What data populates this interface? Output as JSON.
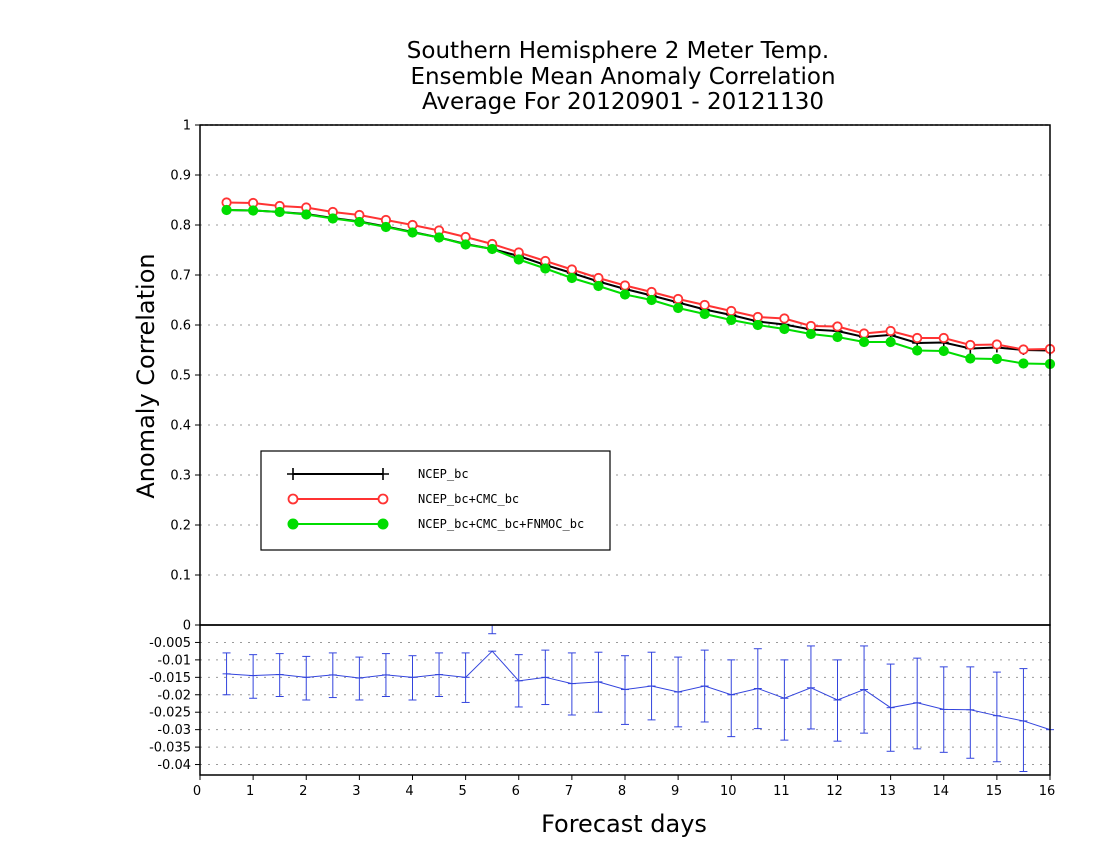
{
  "chart_data": {
    "type": "line",
    "title_lines": [
      "Southern Hemisphere 2 Meter Temp.",
      "Ensemble Mean Anomaly Correlation",
      "Average For 20120901 - 20121130"
    ],
    "xlabel": "Forecast days",
    "ylabel": "Anomaly Correlation",
    "xlim": [
      0,
      16
    ],
    "x_ticks": [
      "0",
      "1",
      "2",
      "3",
      "4",
      "5",
      "6",
      "7",
      "8",
      "9",
      "10",
      "11",
      "12",
      "13",
      "14",
      "15",
      "16"
    ],
    "top_panel": {
      "ylim": [
        0,
        1
      ],
      "y_ticks": [
        "0",
        "0.1",
        "0.2",
        "0.3",
        "0.4",
        "0.5",
        "0.6",
        "0.7",
        "0.8",
        "0.9",
        "1"
      ],
      "x": [
        0.5,
        1,
        1.5,
        2,
        2.5,
        3,
        3.5,
        4,
        4.5,
        5,
        5.5,
        6,
        6.5,
        7,
        7.5,
        8,
        8.5,
        9,
        9.5,
        10,
        10.5,
        11,
        11.5,
        12,
        12.5,
        13,
        13.5,
        14,
        14.5,
        15,
        15.5,
        16
      ],
      "series": [
        {
          "name": "NCEP_bc",
          "color": "#000000",
          "marker": "plus",
          "values": [
            0.83,
            0.829,
            0.826,
            0.822,
            0.814,
            0.807,
            0.797,
            0.786,
            0.775,
            0.762,
            0.752,
            0.738,
            0.72,
            0.704,
            0.687,
            0.672,
            0.659,
            0.645,
            0.631,
            0.62,
            0.607,
            0.601,
            0.591,
            0.588,
            0.576,
            0.58,
            0.564,
            0.565,
            0.553,
            0.555,
            0.55,
            0.549
          ]
        },
        {
          "name": "NCEP_bc+CMC_bc",
          "color": "#ff3333",
          "marker": "open-circle",
          "values": [
            0.845,
            0.844,
            0.838,
            0.835,
            0.826,
            0.82,
            0.81,
            0.8,
            0.789,
            0.776,
            0.762,
            0.745,
            0.728,
            0.711,
            0.694,
            0.679,
            0.666,
            0.652,
            0.64,
            0.628,
            0.616,
            0.613,
            0.598,
            0.597,
            0.583,
            0.588,
            0.574,
            0.574,
            0.56,
            0.561,
            0.551,
            0.552
          ]
        },
        {
          "name": "NCEP_bc+CMC_bc+FNMOC_bc",
          "color": "#00dd00",
          "marker": "filled-circle",
          "values": [
            0.83,
            0.829,
            0.826,
            0.821,
            0.813,
            0.806,
            0.796,
            0.785,
            0.775,
            0.761,
            0.752,
            0.731,
            0.713,
            0.694,
            0.678,
            0.661,
            0.65,
            0.634,
            0.622,
            0.61,
            0.6,
            0.592,
            0.582,
            0.576,
            0.566,
            0.566,
            0.549,
            0.548,
            0.533,
            0.532,
            0.523,
            0.522
          ]
        }
      ],
      "legend": {
        "placement": "lower-left",
        "entries": [
          "NCEP_bc",
          "NCEP_bc+CMC_bc",
          "NCEP_bc+CMC_bc+FNMOC_bc"
        ]
      }
    },
    "bottom_panel": {
      "ylim": [
        -0.043,
        0
      ],
      "y_ticks": [
        "-0.04",
        "-0.035",
        "-0.03",
        "-0.025",
        "-0.02",
        "-0.015",
        "-0.01",
        "-0.005",
        "0"
      ],
      "series": [
        {
          "name": "",
          "color": "#3344dd",
          "x": [
            0.5,
            1,
            1.5,
            2,
            2.5,
            3,
            3.5,
            4,
            4.5,
            5,
            5.5,
            6,
            6.5,
            7,
            7.5,
            8,
            8.5,
            9,
            9.5,
            10,
            10.5,
            11,
            11.5,
            12,
            12.5,
            13,
            13.5,
            14,
            14.5,
            15,
            15.5,
            16
          ],
          "values": [
            -0.014,
            -0.0145,
            -0.0142,
            -0.015,
            -0.0143,
            -0.0152,
            -0.0143,
            -0.015,
            -0.0142,
            -0.015,
            -0.0075,
            -0.016,
            -0.015,
            -0.0168,
            -0.0163,
            -0.0185,
            -0.0175,
            -0.0192,
            -0.0175,
            -0.02,
            -0.0182,
            -0.021,
            -0.018,
            -0.0215,
            -0.0185,
            -0.0237,
            -0.0223,
            -0.0242,
            -0.0243,
            -0.026,
            -0.0275,
            -0.03
          ],
          "error_low": [
            -0.02,
            -0.021,
            -0.0205,
            -0.0215,
            -0.0208,
            -0.0215,
            -0.0205,
            -0.0215,
            -0.0205,
            -0.0222,
            -0.0025,
            -0.0235,
            -0.0228,
            -0.0258,
            -0.025,
            -0.0285,
            -0.0272,
            -0.0292,
            -0.0278,
            -0.032,
            -0.0297,
            -0.033,
            -0.0298,
            -0.0333,
            -0.031,
            -0.0362,
            -0.0355,
            -0.0365,
            -0.0382,
            -0.0392,
            -0.042,
            -0.03
          ],
          "error_high": [
            -0.008,
            -0.0085,
            -0.0082,
            -0.009,
            -0.008,
            -0.0092,
            -0.0082,
            -0.0088,
            -0.008,
            -0.008,
            0.0,
            -0.0085,
            -0.0072,
            -0.008,
            -0.0078,
            -0.0088,
            -0.0078,
            -0.0092,
            -0.0072,
            -0.01,
            -0.0068,
            -0.01,
            -0.006,
            -0.01,
            -0.006,
            -0.0112,
            -0.0095,
            -0.012,
            -0.012,
            -0.0135,
            -0.0125,
            -0.03
          ]
        }
      ]
    },
    "grid": true
  }
}
